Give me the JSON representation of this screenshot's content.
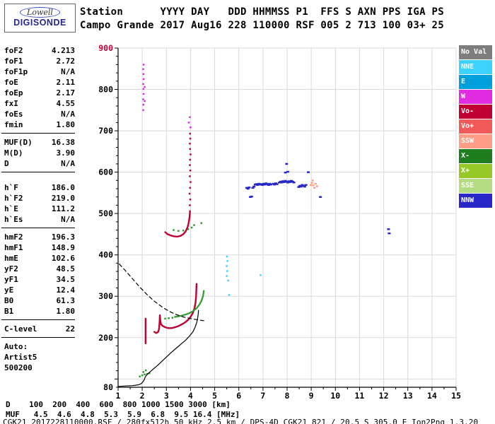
{
  "logo": {
    "line1": "Lowell",
    "line2": "DIGISONDE"
  },
  "header": {
    "line1": "Station      YYYY DAY   DDD HHMMSS P1  FFS S AXN PPS IGA PS",
    "line2": "Campo Grande 2017 Aug16 228 110000 RSF 005 2 713 100 03+ 25"
  },
  "parameters": {
    "groups": [
      {
        "rows": [
          [
            "foF2",
            "4.213"
          ],
          [
            "foF1",
            "2.72"
          ],
          [
            "foF1p",
            "N/A"
          ],
          [
            "foE",
            "2.11"
          ],
          [
            "foEp",
            "2.17"
          ],
          [
            "fxI",
            "4.55"
          ],
          [
            "foEs",
            "N/A"
          ],
          [
            "fmin",
            "1.80"
          ]
        ]
      },
      {
        "rows": [
          [
            "MUF(D)",
            "16.38"
          ],
          [
            "M(D)",
            "3.90"
          ],
          [
            "D",
            "N/A"
          ]
        ]
      },
      {
        "rows": [
          [
            "h`F",
            "186.0"
          ],
          [
            "h`F2",
            "219.0"
          ],
          [
            "h`E",
            "111.2"
          ],
          [
            "h`Es",
            "N/A"
          ]
        ]
      },
      {
        "rows": [
          [
            "hmF2",
            "196.3"
          ],
          [
            "hmF1",
            "148.9"
          ],
          [
            "hmE",
            "102.6"
          ],
          [
            "yF2",
            "48.5"
          ],
          [
            "yF1",
            "34.5"
          ],
          [
            "yE",
            "12.4"
          ],
          [
            "B0",
            "61.3"
          ],
          [
            "B1",
            "1.80"
          ]
        ]
      },
      {
        "rows": [
          [
            "C-level",
            "22"
          ]
        ]
      }
    ],
    "footer_lines": [
      "Auto:",
      "Artist5",
      "500200"
    ]
  },
  "legend": {
    "items": [
      {
        "label": "No Val",
        "color": "#7d7d7d"
      },
      {
        "label": "NNE",
        "color": "#3cd2ff"
      },
      {
        "label": "E",
        "color": "#00a0dc"
      },
      {
        "label": "W",
        "color": "#e12ce1"
      },
      {
        "label": "Vo-",
        "color": "#c00032"
      },
      {
        "label": "Vo+",
        "color": "#f25a5a"
      },
      {
        "label": "SSW",
        "color": "#ff9e86"
      },
      {
        "label": "X-",
        "color": "#1e7d1e"
      },
      {
        "label": "X+",
        "color": "#96c828"
      },
      {
        "label": "SSE",
        "color": "#b4dc82"
      },
      {
        "label": "NNW",
        "color": "#2828c8"
      }
    ]
  },
  "chart_data": {
    "type": "scatter",
    "title": "",
    "xlabel": "",
    "ylabel": "",
    "xlim": [
      1,
      15
    ],
    "ylim": [
      80,
      900
    ],
    "x_ticks": [
      1,
      2,
      3,
      4,
      5,
      6,
      7,
      8,
      9,
      10,
      11,
      12,
      13,
      14,
      15
    ],
    "y_ticks": [
      {
        "label": "900",
        "value": 900,
        "color": "#c00032"
      },
      {
        "label": "800",
        "value": 800
      },
      {
        "label": "700",
        "value": 700
      },
      {
        "label": "600",
        "value": 600
      },
      {
        "label": "500",
        "value": 500
      },
      {
        "label": "400",
        "value": 400
      },
      {
        "label": "300",
        "value": 300
      },
      {
        "label": "200",
        "value": 200
      },
      {
        "label": "80",
        "value": 80
      }
    ],
    "y_gridlines": [
      100,
      200,
      300,
      400,
      500,
      600,
      700,
      800,
      900
    ],
    "lines": [
      {
        "name": "o-mode-trace",
        "color": "#c00032",
        "width": 2.4,
        "style": "solid",
        "segments": [
          [
            [
              2.14,
              186
            ],
            [
              2.14,
              246
            ]
          ],
          [
            [
              2.5,
              214
            ],
            [
              2.58,
              211
            ],
            [
              2.66,
              214
            ],
            [
              2.7,
              222
            ],
            [
              2.72,
              238
            ],
            [
              2.73,
              254
            ],
            [
              2.75,
              240
            ],
            [
              2.78,
              232
            ],
            [
              2.85,
              228
            ],
            [
              2.95,
              225
            ],
            [
              3.08,
              223
            ],
            [
              3.22,
              223
            ],
            [
              3.36,
              225
            ],
            [
              3.5,
              228
            ],
            [
              3.64,
              232
            ],
            [
              3.78,
              237
            ],
            [
              3.9,
              243
            ],
            [
              4.0,
              250
            ],
            [
              4.1,
              260
            ],
            [
              4.17,
              272
            ],
            [
              4.21,
              286
            ],
            [
              4.23,
              300
            ],
            [
              4.24,
              314
            ],
            [
              4.25,
              330
            ]
          ],
          [
            [
              2.95,
              455
            ],
            [
              3.05,
              450
            ],
            [
              3.18,
              447
            ],
            [
              3.3,
              445
            ],
            [
              3.45,
              444
            ],
            [
              3.58,
              446
            ],
            [
              3.7,
              450
            ],
            [
              3.8,
              457
            ],
            [
              3.88,
              467
            ],
            [
              3.93,
              479
            ],
            [
              3.96,
              492
            ],
            [
              3.98,
              506
            ]
          ]
        ]
      },
      {
        "name": "x-mode-trace",
        "color": "#2e9b2e",
        "width": 2.2,
        "style": "solid",
        "segments": [
          [
            [
              3.35,
              250
            ],
            [
              3.55,
              252
            ],
            [
              3.75,
              255
            ],
            [
              3.95,
              259
            ],
            [
              4.1,
              264
            ],
            [
              4.25,
              271
            ],
            [
              4.37,
              280
            ],
            [
              4.46,
              290
            ],
            [
              4.52,
              301
            ],
            [
              4.55,
              313
            ]
          ]
        ]
      },
      {
        "name": "true-height-profile",
        "color": "#000000",
        "width": 1.2,
        "style": "solid",
        "segments": [
          [
            [
              1.0,
              82
            ],
            [
              1.3,
              83
            ],
            [
              1.6,
              84
            ],
            [
              1.85,
              86
            ],
            [
              1.97,
              89
            ],
            [
              2.04,
              94
            ],
            [
              2.09,
              99
            ],
            [
              2.11,
              103
            ],
            [
              2.16,
              108
            ],
            [
              2.22,
              112
            ],
            [
              2.32,
              117
            ],
            [
              2.46,
              124
            ],
            [
              2.62,
              132
            ],
            [
              2.8,
              142
            ],
            [
              3.0,
              153
            ],
            [
              3.2,
              164
            ],
            [
              3.4,
              174
            ],
            [
              3.6,
              184
            ],
            [
              3.8,
              194
            ],
            [
              3.96,
              204
            ],
            [
              4.1,
              214
            ],
            [
              4.19,
              225
            ],
            [
              4.26,
              237
            ],
            [
              4.3,
              249
            ],
            [
              4.32,
              259
            ],
            [
              4.33,
              266
            ]
          ]
        ]
      },
      {
        "name": "transmission-curve",
        "color": "#000000",
        "width": 1.2,
        "style": "dashed",
        "segments": [
          [
            [
              1.05,
              378
            ],
            [
              1.3,
              362
            ],
            [
              1.6,
              342
            ],
            [
              1.9,
              322
            ],
            [
              2.2,
              304
            ],
            [
              2.5,
              288
            ],
            [
              2.8,
              275
            ],
            [
              3.1,
              264
            ],
            [
              3.4,
              256
            ],
            [
              3.7,
              250
            ],
            [
              4.0,
              246
            ],
            [
              4.3,
              243
            ],
            [
              4.55,
              241
            ]
          ]
        ]
      }
    ],
    "points": [
      {
        "name": "o-second-hop-spread",
        "color": "#c00032",
        "size": [
          2.5,
          2.5
        ],
        "pts": [
          [
            3.97,
            520
          ],
          [
            3.99,
            534
          ],
          [
            3.96,
            548
          ],
          [
            3.98,
            562
          ],
          [
            4.0,
            576
          ],
          [
            3.97,
            590
          ],
          [
            3.99,
            604
          ],
          [
            3.97,
            617
          ],
          [
            3.98,
            630
          ],
          [
            4.0,
            643
          ],
          [
            3.98,
            656
          ],
          [
            3.97,
            669
          ],
          [
            3.99,
            681
          ],
          [
            3.98,
            693
          ]
        ]
      },
      {
        "name": "x-mode-scatter",
        "color": "#2e9b2e",
        "size": [
          2.5,
          2.5
        ],
        "pts": [
          [
            2.95,
            246
          ],
          [
            3.1,
            247
          ],
          [
            3.25,
            248
          ],
          [
            3.3,
            460
          ],
          [
            3.5,
            458
          ],
          [
            3.7,
            459
          ],
          [
            3.9,
            462
          ],
          [
            4.05,
            466
          ],
          [
            4.15,
            472
          ],
          [
            4.45,
            477
          ],
          [
            1.9,
            106
          ],
          [
            2.0,
            109
          ],
          [
            2.1,
            111
          ],
          [
            2.2,
            112
          ],
          [
            2.3,
            114
          ],
          [
            2.05,
            117
          ],
          [
            2.15,
            121
          ]
        ]
      },
      {
        "name": "nnw-spread-f",
        "color": "#2828c8",
        "size": [
          4,
          2.5
        ],
        "pts": [
          [
            6.33,
            562
          ],
          [
            6.38,
            560
          ],
          [
            6.43,
            563
          ],
          [
            6.48,
            540
          ],
          [
            6.53,
            541
          ],
          [
            6.58,
            562
          ],
          [
            6.63,
            565
          ],
          [
            6.68,
            570
          ],
          [
            6.73,
            571
          ],
          [
            6.78,
            569
          ],
          [
            6.83,
            572
          ],
          [
            6.88,
            570
          ],
          [
            6.93,
            571
          ],
          [
            6.98,
            569
          ],
          [
            7.03,
            572
          ],
          [
            7.08,
            570
          ],
          [
            7.13,
            573
          ],
          [
            7.18,
            571
          ],
          [
            7.23,
            569
          ],
          [
            7.28,
            572
          ],
          [
            7.33,
            570
          ],
          [
            7.43,
            572
          ],
          [
            7.48,
            570
          ],
          [
            7.53,
            573
          ],
          [
            7.58,
            571
          ],
          [
            7.68,
            575
          ],
          [
            7.73,
            577
          ],
          [
            7.78,
            575
          ],
          [
            7.83,
            578
          ],
          [
            7.88,
            576
          ],
          [
            7.93,
            579
          ],
          [
            7.98,
            577
          ],
          [
            8.03,
            575
          ],
          [
            8.08,
            578
          ],
          [
            8.13,
            576
          ],
          [
            8.18,
            579
          ],
          [
            8.23,
            577
          ],
          [
            8.28,
            575
          ],
          [
            7.98,
            620
          ],
          [
            8.03,
            601
          ],
          [
            7.93,
            599
          ],
          [
            8.48,
            564
          ],
          [
            8.53,
            567
          ],
          [
            8.58,
            565
          ],
          [
            8.63,
            569
          ],
          [
            8.68,
            567
          ],
          [
            8.73,
            565
          ],
          [
            8.78,
            569
          ],
          [
            8.88,
            600
          ],
          [
            9.38,
            540
          ],
          [
            12.2,
            462
          ],
          [
            12.23,
            452
          ]
        ]
      },
      {
        "name": "ssw-scatter",
        "color": "#ff9e86",
        "size": [
          3,
          2.5
        ],
        "pts": [
          [
            8.98,
            569
          ],
          [
            9.03,
            574
          ],
          [
            9.08,
            568
          ],
          [
            9.13,
            562
          ],
          [
            9.18,
            572
          ],
          [
            9.06,
            580
          ],
          [
            9.24,
            566
          ]
        ]
      },
      {
        "name": "w-scatter",
        "color": "#e12ce1",
        "size": [
          2.5,
          2.5
        ],
        "pts": [
          [
            2.04,
            750
          ],
          [
            2.05,
            763
          ],
          [
            2.04,
            776
          ],
          [
            2.06,
            789
          ],
          [
            2.05,
            801
          ],
          [
            2.04,
            813
          ],
          [
            2.06,
            825
          ],
          [
            2.05,
            837
          ],
          [
            2.04,
            849
          ],
          [
            2.06,
            860
          ],
          [
            2.1,
            772
          ],
          [
            2.1,
            806
          ],
          [
            3.93,
            720
          ],
          [
            3.97,
            733
          ],
          [
            4.0,
            708
          ]
        ]
      },
      {
        "name": "nne-scatter",
        "color": "#3cd2ff",
        "size": [
          2.5,
          2.5
        ],
        "pts": [
          [
            5.5,
            349
          ],
          [
            5.52,
            361
          ],
          [
            5.5,
            373
          ],
          [
            5.53,
            385
          ],
          [
            5.51,
            396
          ],
          [
            5.56,
            338
          ],
          [
            5.6,
            303
          ],
          [
            6.9,
            351
          ]
        ]
      }
    ]
  },
  "bottom": {
    "d_line": "D    100  200  400  600  800 1000 1500 3000 [km]",
    "muf_line": "MUF   4.5  4.6  4.8  5.3  5.9  6.8  9.5 16.4 [MHz]"
  },
  "footer": "CGK21_2017228110000.RSF / 280fx512h 50 kHz 2.5 km / DPS-4D CGK21 821 / 20.5 S 305.0 E Ion2Png 1.3.20"
}
